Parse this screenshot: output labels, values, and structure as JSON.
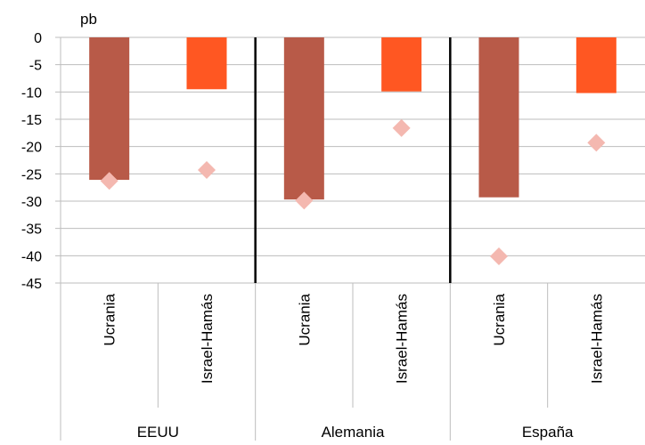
{
  "chart_data": {
    "type": "bar",
    "unit_label": "pb",
    "ylim": [
      -45,
      0
    ],
    "yticks": [
      0,
      -5,
      -10,
      -15,
      -20,
      -25,
      -30,
      -35,
      -40,
      -45
    ],
    "grid": true,
    "groups": [
      "EEUU",
      "Alemania",
      "España"
    ],
    "categories": [
      "Ucrania",
      "Israel-Hamás"
    ],
    "bars": [
      {
        "group": "EEUU",
        "category": "Ucrania",
        "value": -26.1,
        "color": "#b85a48"
      },
      {
        "group": "EEUU",
        "category": "Israel-Hamás",
        "value": -9.5,
        "color": "#ff5722"
      },
      {
        "group": "Alemania",
        "category": "Ucrania",
        "value": -29.7,
        "color": "#b85a48"
      },
      {
        "group": "Alemania",
        "category": "Israel-Hamás",
        "value": -9.9,
        "color": "#ff5722"
      },
      {
        "group": "España",
        "category": "Ucrania",
        "value": -29.3,
        "color": "#b85a48"
      },
      {
        "group": "España",
        "category": "Israel-Hamás",
        "value": -10.2,
        "color": "#ff5722"
      }
    ],
    "markers": [
      {
        "group": "EEUU",
        "category": "Ucrania",
        "value": -26.3
      },
      {
        "group": "EEUU",
        "category": "Israel-Hamás",
        "value": -24.3
      },
      {
        "group": "Alemania",
        "category": "Ucrania",
        "value": -29.9
      },
      {
        "group": "Alemania",
        "category": "Israel-Hamás",
        "value": -16.6
      },
      {
        "group": "España",
        "category": "Ucrania",
        "value": -40.1
      },
      {
        "group": "España",
        "category": "Israel-Hamás",
        "value": -19.3
      }
    ],
    "marker_color": "#f4b8b0",
    "gridline_color": "#bdbdbd",
    "separator_color": "#000000"
  }
}
